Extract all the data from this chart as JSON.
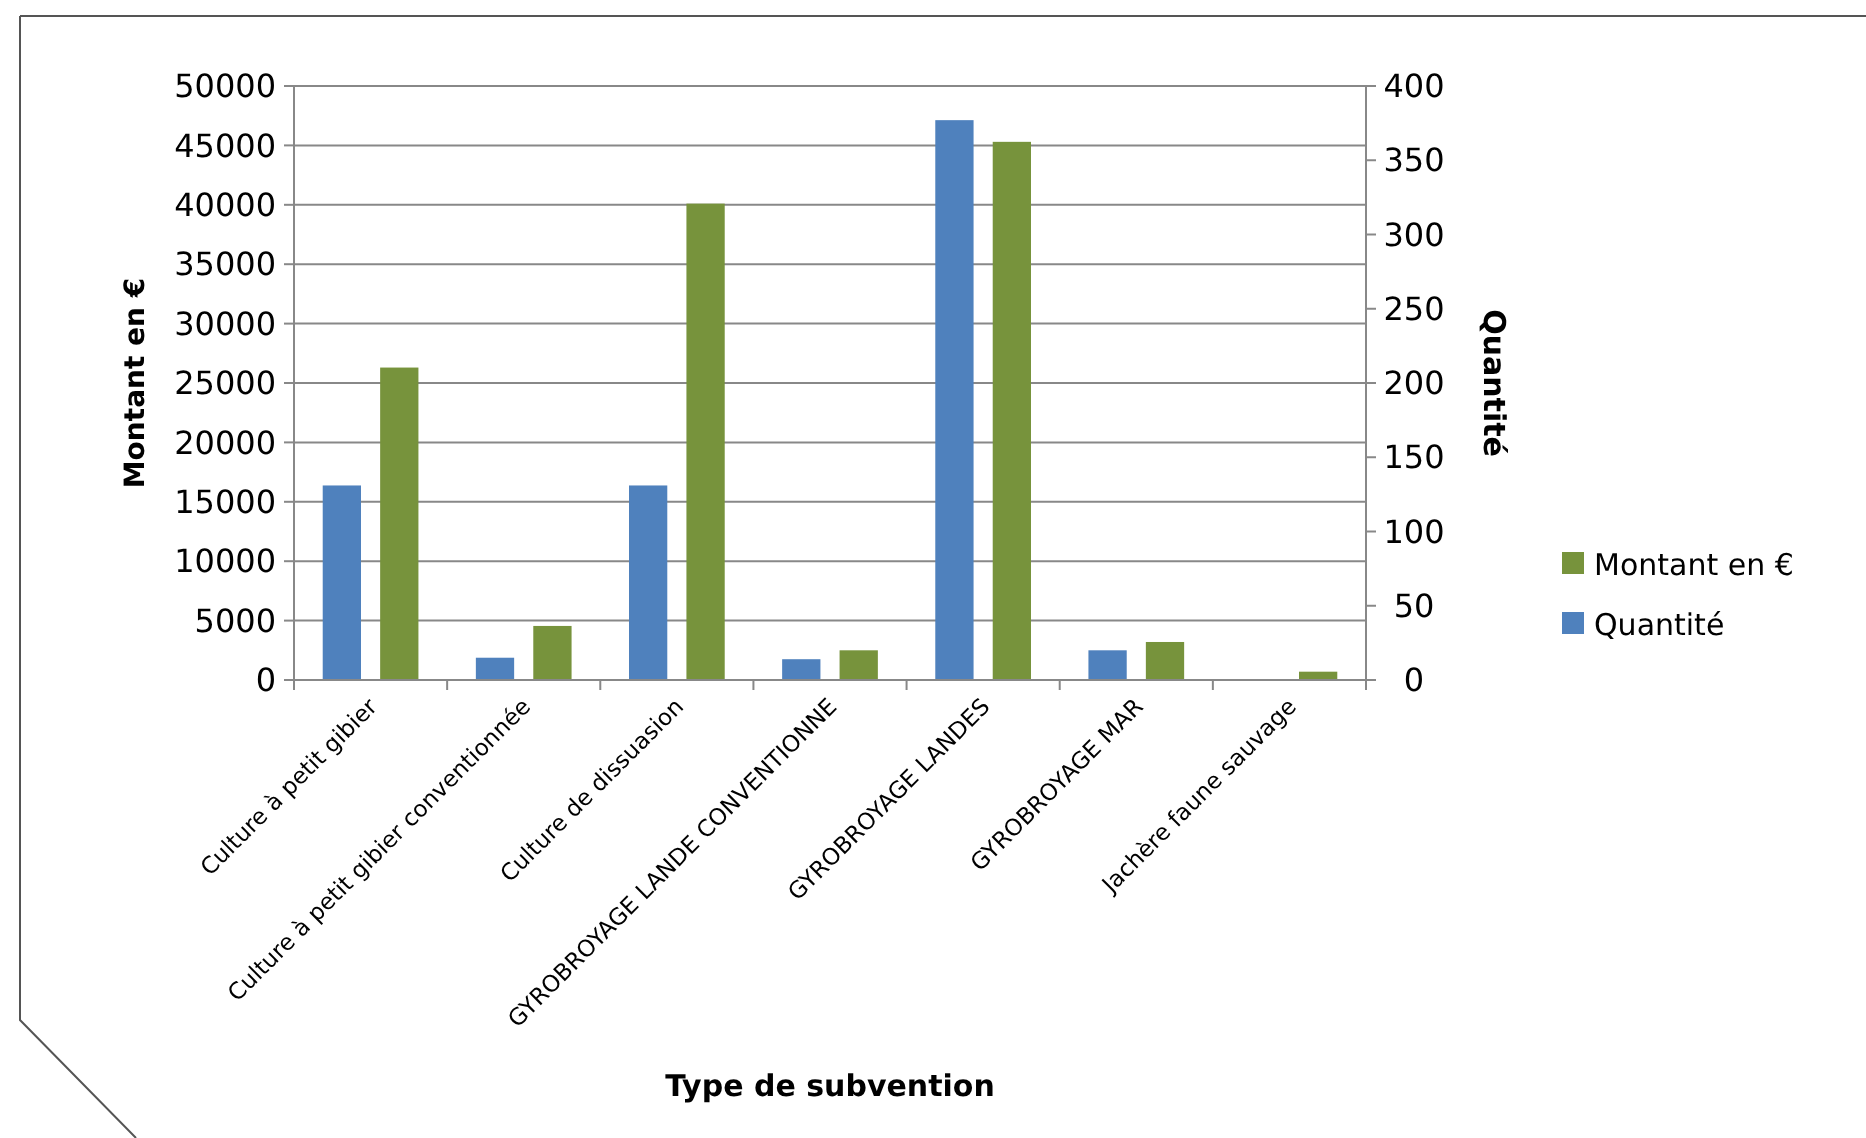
{
  "chart_data": {
    "type": "bar",
    "xlabel": "Type de subvention",
    "ylabel": "Montant en €",
    "y2label": "Quantité",
    "categories": [
      "Culture à petit gibier",
      "Culture à petit gibier conventionnée",
      "Culture de dissuasion",
      "GYROBROYAGE LANDE CONVENTIONNE",
      "GYROBROYAGE LANDES",
      "GYROBROYAGE MAR",
      "Jachère faune sauvage"
    ],
    "series": [
      {
        "name": "Quantité",
        "color": "#4f81bd",
        "axis": "y2",
        "values": [
          131,
          15,
          131,
          14,
          377,
          20,
          0
        ]
      },
      {
        "name": "Montant en €",
        "color": "#77933c",
        "values": [
          26300,
          4550,
          40100,
          2500,
          45300,
          3200,
          700
        ]
      }
    ],
    "ylim": [
      0,
      50000
    ],
    "yticks": [
      0,
      5000,
      10000,
      15000,
      20000,
      25000,
      30000,
      35000,
      40000,
      45000,
      50000
    ],
    "y2lim": [
      0,
      400
    ],
    "y2ticks": [
      0,
      50,
      100,
      150,
      200,
      250,
      300,
      350,
      400
    ],
    "grid": "y",
    "legend": "right"
  }
}
